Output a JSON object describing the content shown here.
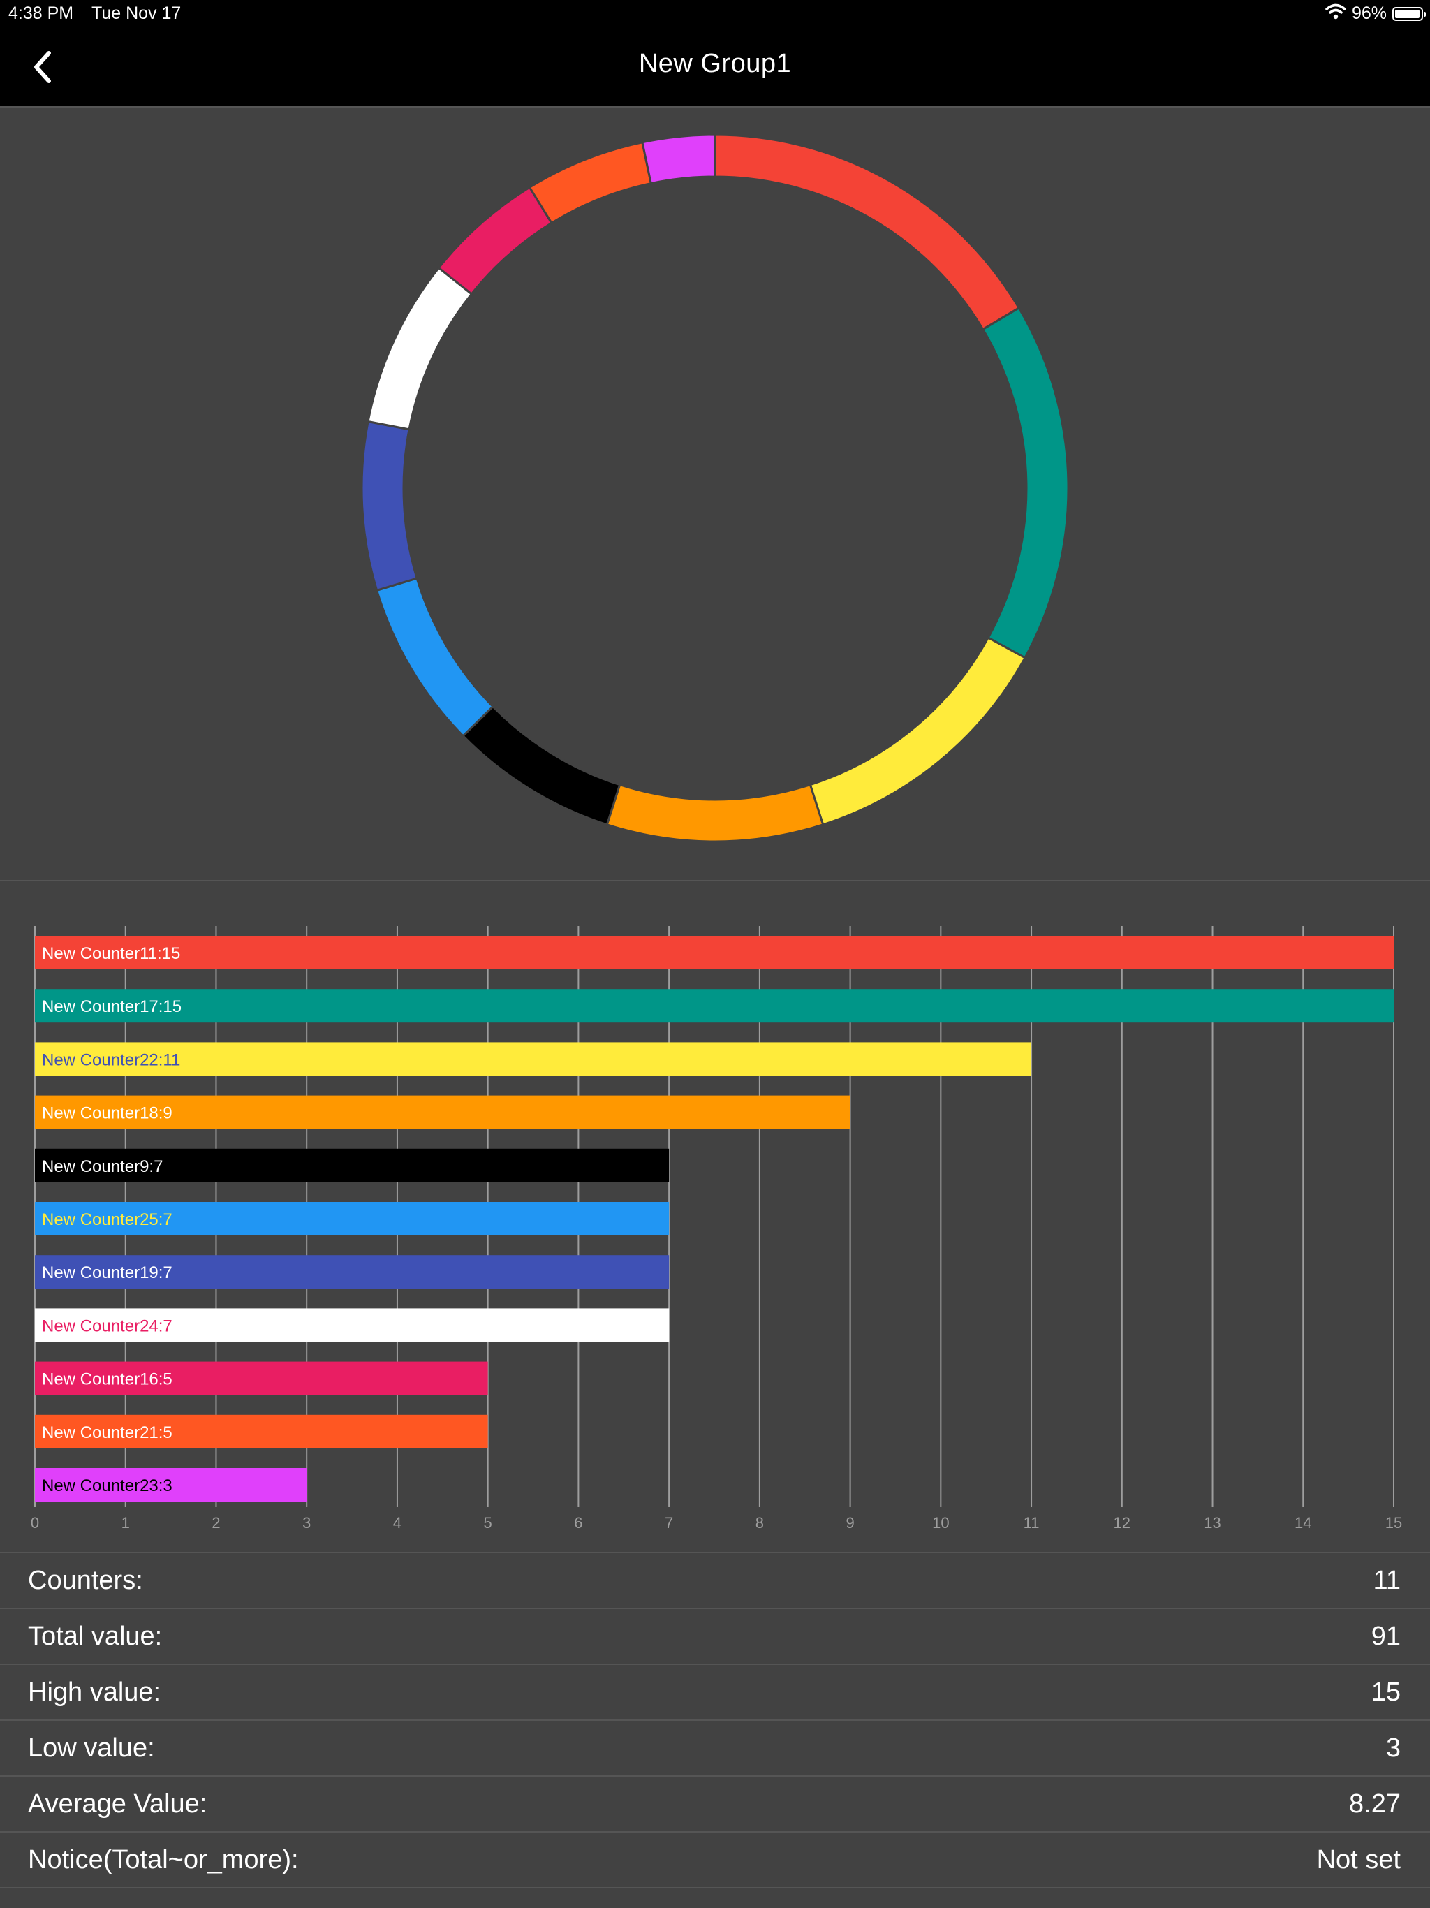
{
  "status_bar": {
    "time": "4:38 PM",
    "date": "Tue Nov 17",
    "battery": "96%",
    "battery_level": 0.96
  },
  "nav": {
    "title": "New Group1",
    "back_icon": "chevron-left-icon"
  },
  "chart_data": [
    {
      "type": "pie",
      "variant": "donut",
      "labels": [
        "New Counter11",
        "New Counter17",
        "New Counter22",
        "New Counter18",
        "New Counter9",
        "New Counter25",
        "New Counter19",
        "New Counter24",
        "New Counter16",
        "New Counter21",
        "New Counter23"
      ],
      "values": [
        15,
        15,
        11,
        9,
        7,
        7,
        7,
        7,
        5,
        5,
        3
      ],
      "colors": [
        "#f44336",
        "#009688",
        "#ffeb3b",
        "#ff9800",
        "#000000",
        "#2196f3",
        "#3f51b5",
        "#ffffff",
        "#e91e63",
        "#ff5722",
        "#e040fb"
      ]
    },
    {
      "type": "bar",
      "orientation": "horizontal",
      "categories": [
        "New Counter11",
        "New Counter17",
        "New Counter22",
        "New Counter18",
        "New Counter9",
        "New Counter25",
        "New Counter19",
        "New Counter24",
        "New Counter16",
        "New Counter21",
        "New Counter23"
      ],
      "values": [
        15,
        15,
        11,
        9,
        7,
        7,
        7,
        7,
        5,
        5,
        3
      ],
      "bar_labels": [
        "New Counter11:15",
        "New Counter17:15",
        "New Counter22:11",
        "New Counter18:9",
        "New Counter9:7",
        "New Counter25:7",
        "New Counter19:7",
        "New Counter24:7",
        "New Counter16:5",
        "New Counter21:5",
        "New Counter23:3"
      ],
      "colors": [
        "#f44336",
        "#009688",
        "#ffeb3b",
        "#ff9800",
        "#000000",
        "#2196f3",
        "#3f51b5",
        "#ffffff",
        "#e91e63",
        "#ff5722",
        "#e040fb"
      ],
      "label_colors": [
        "#ffffff",
        "#ffffff",
        "#3f51b5",
        "#ffffff",
        "#ffffff",
        "#ffeb3b",
        "#ffffff",
        "#e91e63",
        "#ffffff",
        "#ffffff",
        "#000000"
      ],
      "xlim": [
        0,
        15
      ],
      "xticks": [
        "0",
        "1",
        "2",
        "3",
        "4",
        "5",
        "6",
        "7",
        "8",
        "9",
        "10",
        "11",
        "12",
        "13",
        "14",
        "15"
      ],
      "grid": true
    }
  ],
  "stats": [
    {
      "label": "Counters:",
      "value": "11"
    },
    {
      "label": "Total value:",
      "value": "91"
    },
    {
      "label": "High value:",
      "value": "15"
    },
    {
      "label": "Low value:",
      "value": "3"
    },
    {
      "label": "Average Value:",
      "value": "8.27"
    },
    {
      "label": "Notice(Total~or_more):",
      "value": "Not set"
    }
  ]
}
